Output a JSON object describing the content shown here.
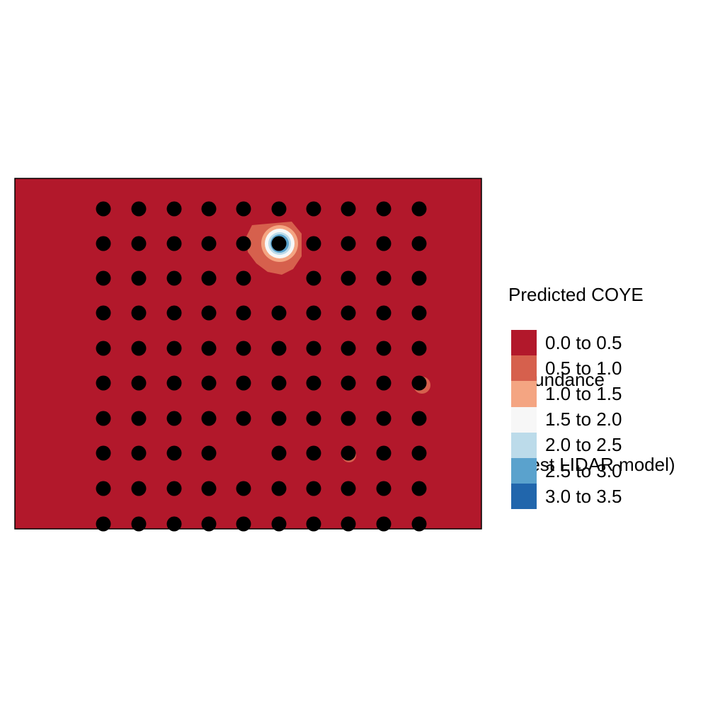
{
  "map": {
    "background_class": "0.0 to 0.5",
    "stations": {
      "columns": [
        146,
        196,
        246,
        295,
        344,
        394,
        443,
        492,
        542,
        592
      ],
      "rows": [
        295,
        344,
        393,
        442,
        492,
        541,
        591,
        640,
        690,
        740
      ],
      "missing": [
        [
          2,
          5
        ],
        [
          7,
          4
        ]
      ]
    }
  },
  "legend": {
    "title_lines": [
      "Predicted COYE",
      " abundance",
      " (best LIDAR model)"
    ],
    "classes": [
      {
        "label": "0.0 to 0.5",
        "color": "#B2182B"
      },
      {
        "label": "0.5 to 1.0",
        "color": "#D6604D"
      },
      {
        "label": "1.0 to 1.5",
        "color": "#F4A582"
      },
      {
        "label": "1.5 to 2.0",
        "color": "#F7F7F7"
      },
      {
        "label": "2.0 to 2.5",
        "color": "#BCDBEA"
      },
      {
        "label": "2.5 to 3.0",
        "color": "#5AA2CD"
      },
      {
        "label": "3.0 to 3.5",
        "color": "#2166AC"
      }
    ]
  }
}
